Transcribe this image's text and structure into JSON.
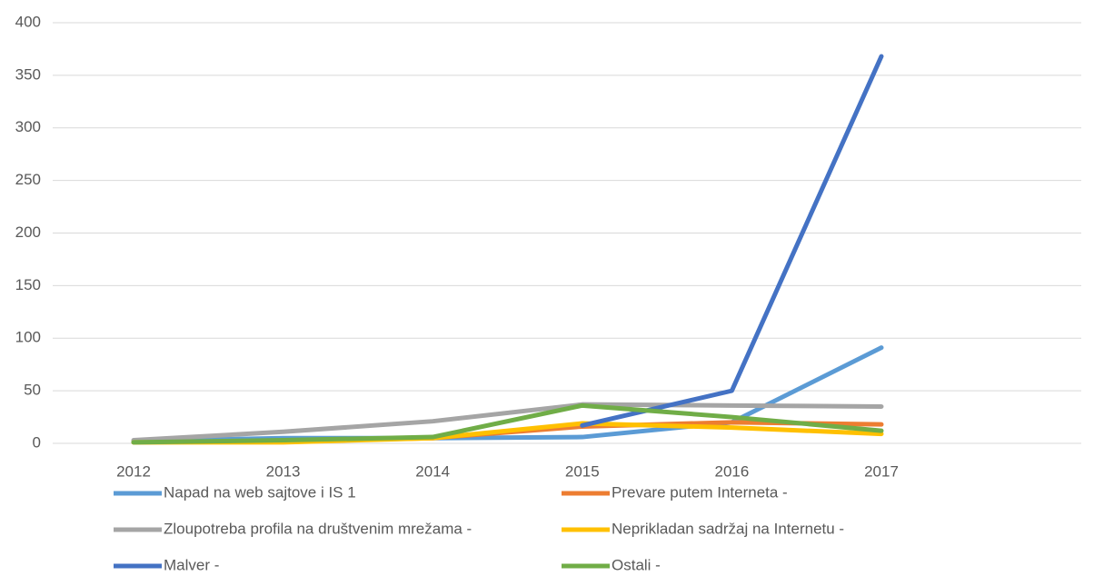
{
  "chart_data": {
    "type": "line",
    "categories": [
      "2012",
      "2013",
      "2014",
      "2015",
      "2016",
      "2017"
    ],
    "series": [
      {
        "name": "Napad na web sajtove i IS 1",
        "color": "#5b9bd5",
        "values": [
          2,
          5,
          5,
          6,
          20,
          91
        ]
      },
      {
        "name": "Prevare putem Interneta -",
        "color": "#ed7d31",
        "values": [
          1,
          2,
          5,
          16,
          20,
          18
        ]
      },
      {
        "name": "Zloupotreba profila na društvenim mrežama -",
        "color": "#a5a5a5",
        "values": [
          3,
          11,
          21,
          37,
          36,
          35
        ]
      },
      {
        "name": "Neprikladan sadržaj na Internetu -",
        "color": "#ffc000",
        "values": [
          1,
          1,
          5,
          19,
          15,
          9
        ]
      },
      {
        "name": "Malver -",
        "color": "#4472c4",
        "values": [
          null,
          null,
          null,
          17,
          50,
          368
        ]
      },
      {
        "name": "Ostali -",
        "color": "#70ad47",
        "values": [
          1,
          3,
          6,
          36,
          25,
          12
        ]
      }
    ],
    "ylim": [
      0,
      400
    ],
    "yticks": [
      0,
      50,
      100,
      150,
      200,
      250,
      300,
      350,
      400
    ],
    "grid": true,
    "legend": "bottom"
  }
}
